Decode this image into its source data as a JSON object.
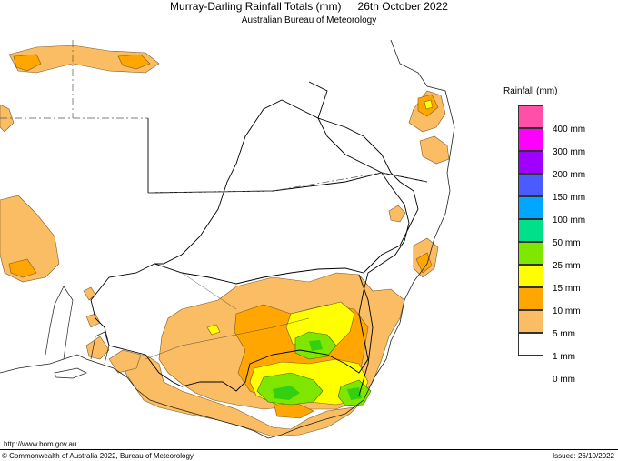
{
  "header": {
    "title": "Murray-Darling Rainfall Totals (mm)",
    "date": "26th October 2022",
    "subtitle": "Australian Bureau of Meteorology"
  },
  "legend": {
    "title": "Rainfall (mm)",
    "items": [
      {
        "label": "400 mm",
        "color": "#ff4fa6"
      },
      {
        "label": "300 mm",
        "color": "#ff00ff"
      },
      {
        "label": "200 mm",
        "color": "#9f00ff"
      },
      {
        "label": "150 mm",
        "color": "#4a5cff"
      },
      {
        "label": "100 mm",
        "color": "#00a6ff"
      },
      {
        "label": "50 mm",
        "color": "#00e08a"
      },
      {
        "label": "25 mm",
        "color": "#7fe600"
      },
      {
        "label": "15 mm",
        "color": "#ffff00"
      },
      {
        "label": "10 mm",
        "color": "#ffa600"
      },
      {
        "label": "5 mm",
        "color": "#fbbd63"
      },
      {
        "label": "1 mm",
        "color": "#ffffff"
      },
      {
        "label": "0 mm",
        "color": ""
      }
    ]
  },
  "footer": {
    "url": "http://www.bom.gov.au",
    "copyright": "© Commonwealth of Australia 2022, Bureau of Meteorology",
    "issued": "Issued: 26/10/2022"
  }
}
